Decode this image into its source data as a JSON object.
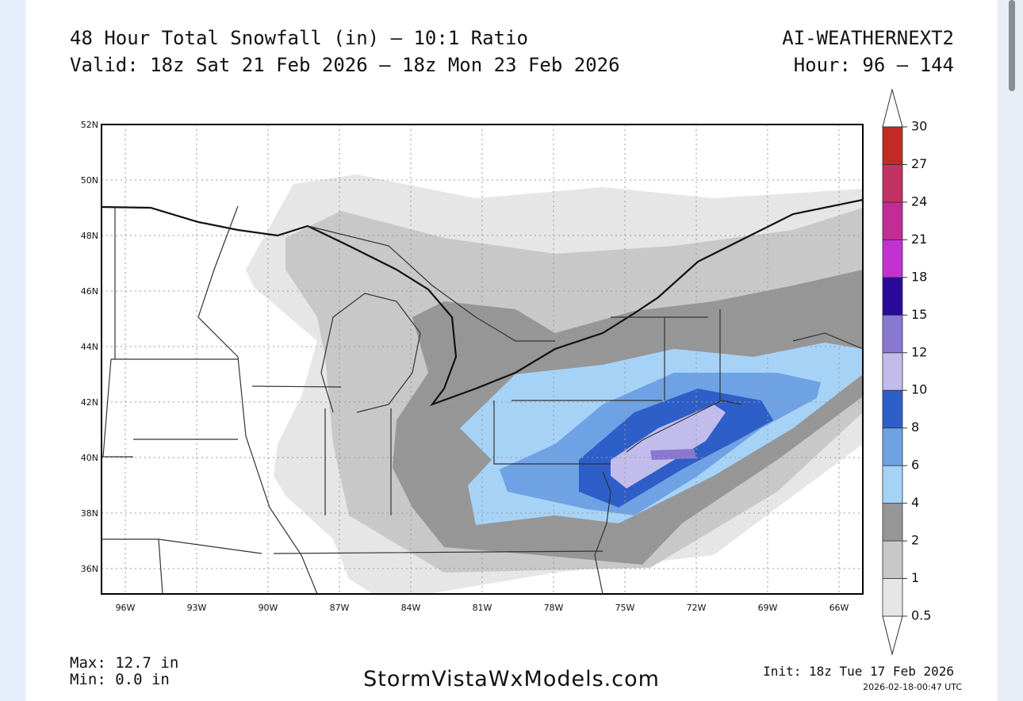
{
  "header": {
    "title": "48 Hour Total Snowfall (in) — 10:1 Ratio",
    "valid": "Valid: 18z Sat 21 Feb 2026 — 18z Mon 23 Feb 2026",
    "model": "AI-WEATHERNEXT2",
    "hour": "Hour: 96 — 144"
  },
  "map": {
    "lat_labels": [
      "52N",
      "50N",
      "48N",
      "46N",
      "44N",
      "42N",
      "40N",
      "38N",
      "36N"
    ],
    "lon_labels": [
      "96W",
      "93W",
      "90W",
      "87W",
      "84W",
      "81W",
      "78W",
      "75W",
      "72W",
      "69W",
      "66W"
    ]
  },
  "colorbar": {
    "levels": [
      0.5,
      1,
      2,
      4,
      6,
      8,
      10,
      12,
      15,
      18,
      21,
      24,
      27,
      30
    ],
    "colors": [
      "#e6e6e6",
      "#c8c8c8",
      "#969696",
      "#a6d2f6",
      "#6ea2e4",
      "#2e5ec8",
      "#c2bcec",
      "#8878d2",
      "#2a0a98",
      "#c232d2",
      "#c22c96",
      "#c23262",
      "#c22a24"
    ]
  },
  "footer": {
    "max": "Max: 12.7 in",
    "min": "Min: 0.0 in",
    "site": "StormVistaWxModels.com",
    "init": "Init: 18z Tue 17 Feb 2026",
    "timestamp": "2026-02-18-00:47 UTC"
  }
}
